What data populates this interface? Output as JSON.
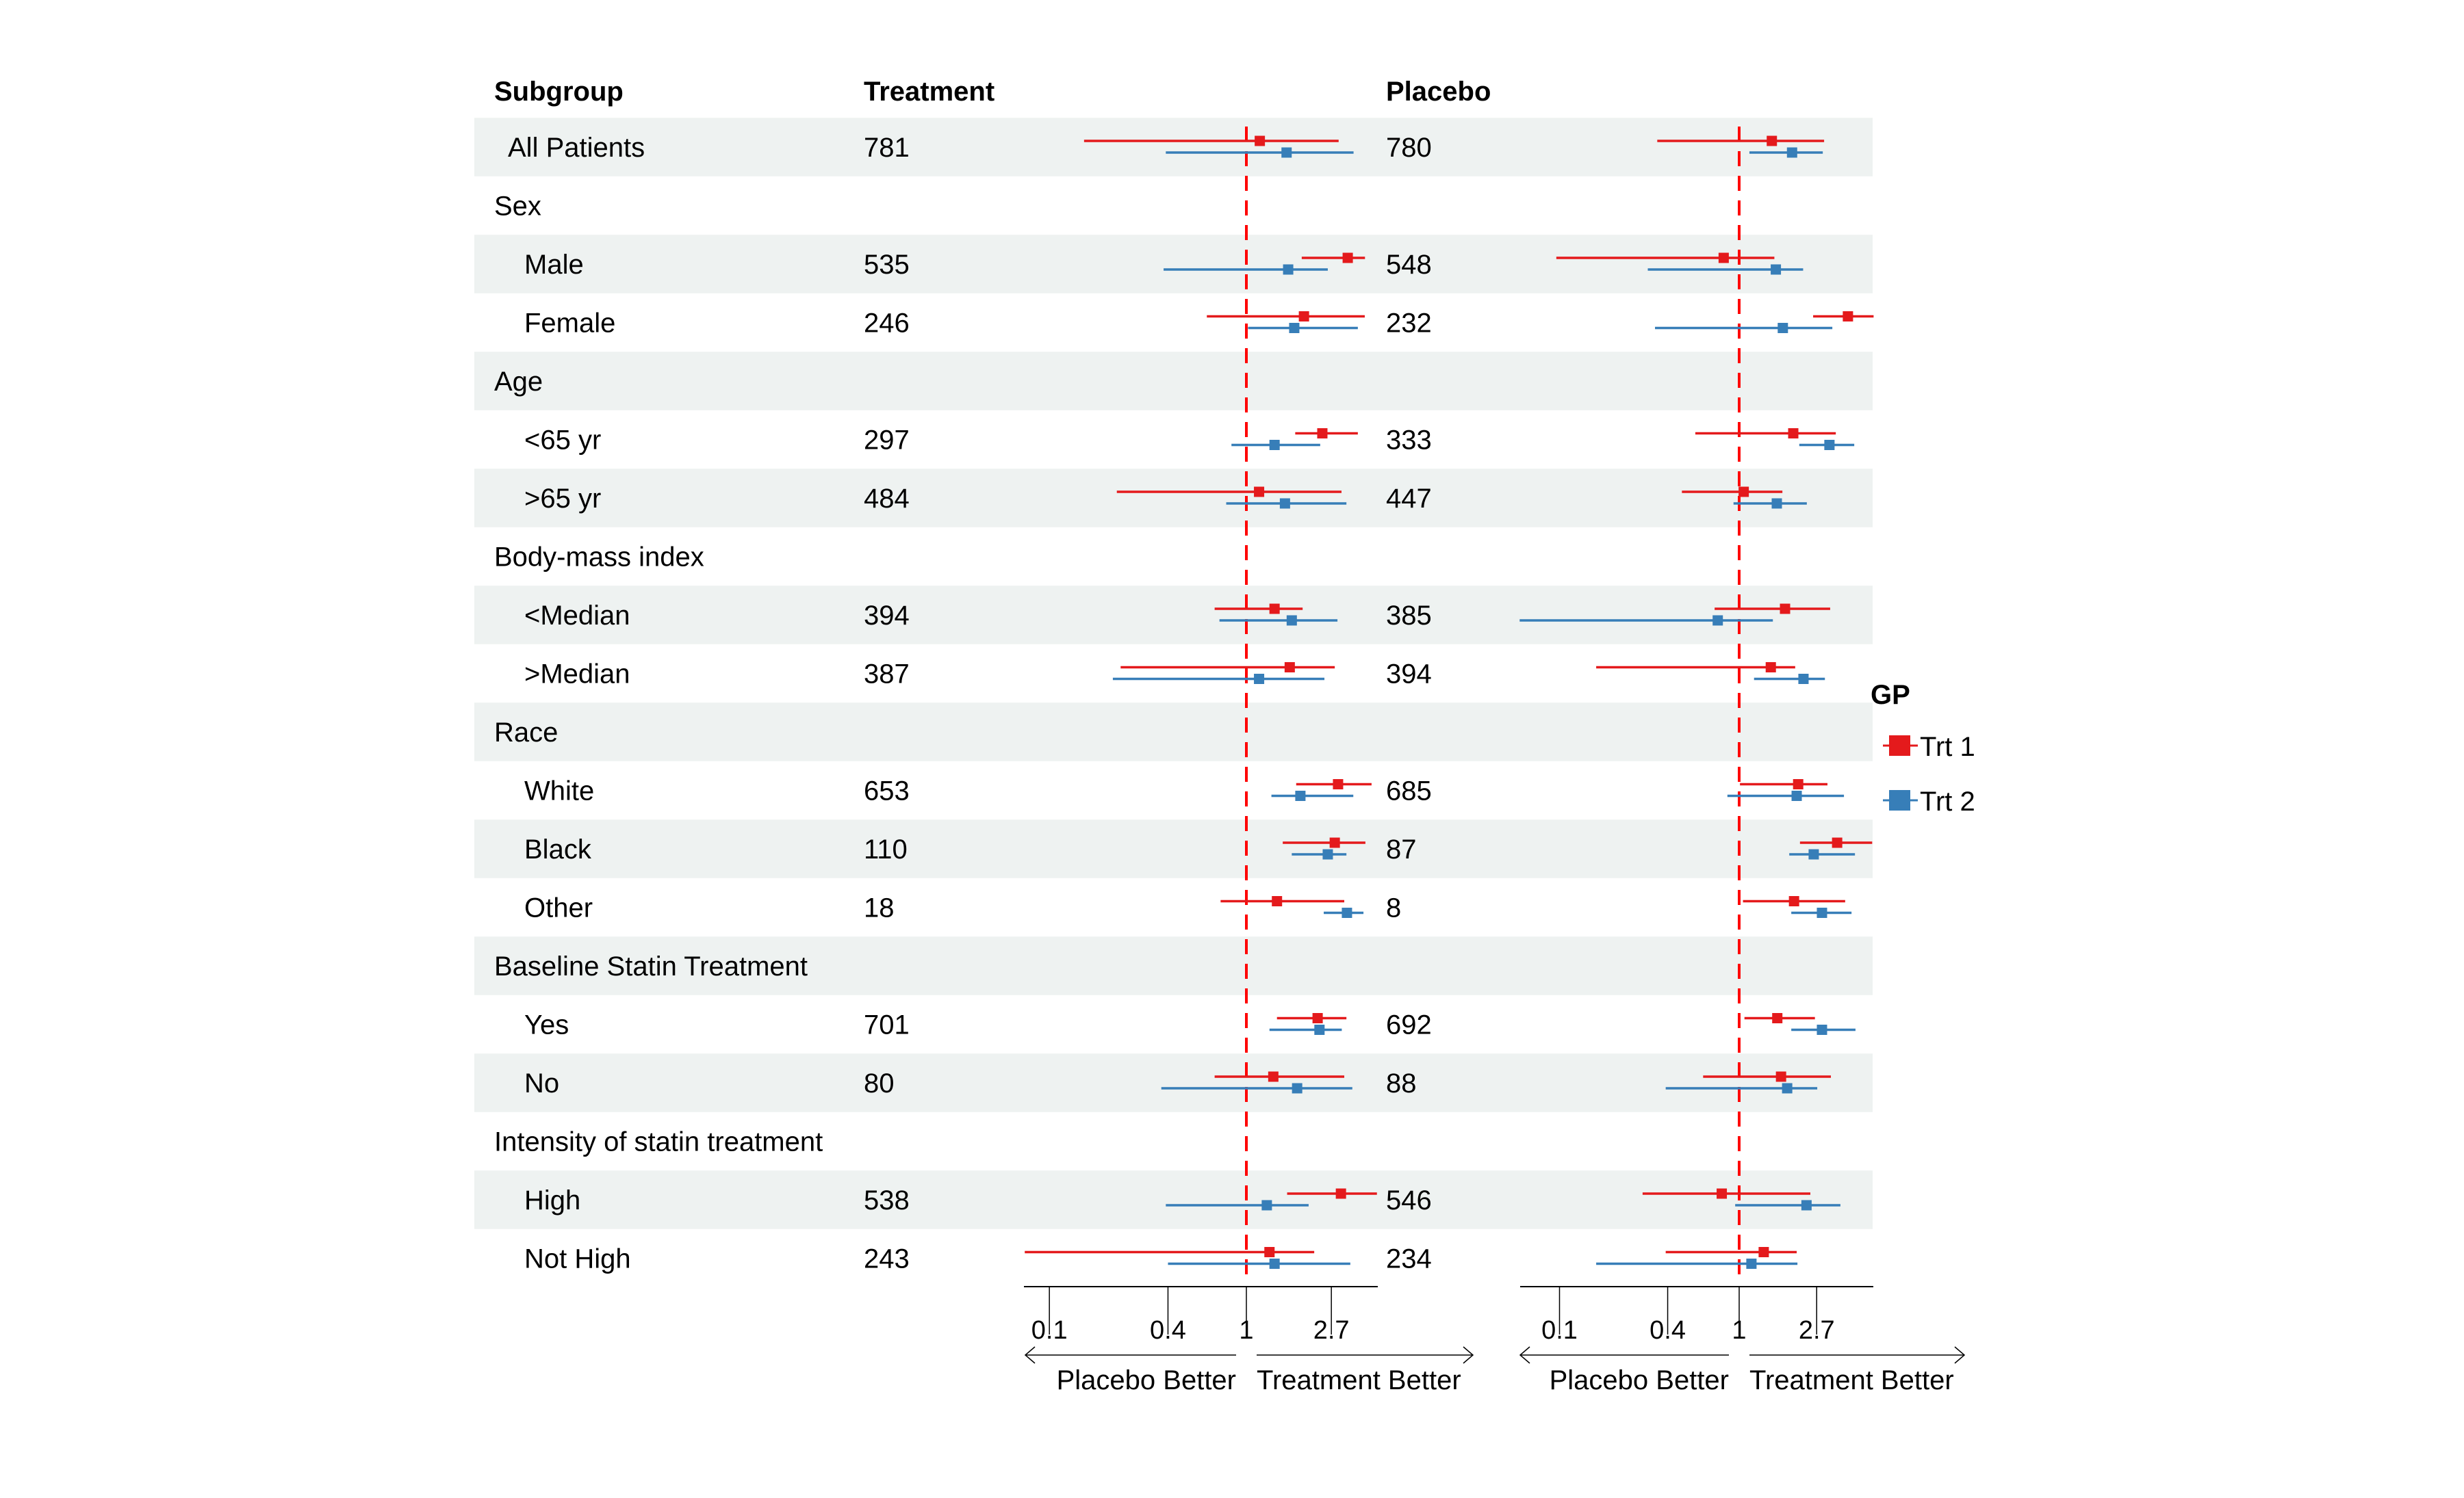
{
  "chart_data": {
    "type": "forest",
    "title": "",
    "columns": {
      "subgroup": "Subgroup",
      "treatment": "Treatment",
      "placebo": "Placebo"
    },
    "scale": "log",
    "reference_value": 1,
    "x_ticks": [
      0.1,
      0.4,
      1,
      2.7
    ],
    "x_tick_labels": [
      "0.1",
      "0.4",
      "1",
      "2.7"
    ],
    "panels": [
      {
        "name": "left",
        "xlim": [
          0.074,
          4.65
        ],
        "direction_labels": {
          "left": "Placebo Better",
          "right": "Treatment Better"
        }
      },
      {
        "name": "right",
        "xlim": [
          0.06,
          5.5
        ],
        "direction_labels": {
          "left": "Placebo Better",
          "right": "Treatment Better"
        }
      }
    ],
    "legend": {
      "title": "GP",
      "placement": "right",
      "entries": [
        {
          "name": "Trt 1",
          "color": "#e41a1c"
        },
        {
          "name": "Trt 2",
          "color": "#377eb8"
        }
      ]
    },
    "rows": [
      {
        "label": "All Patients",
        "indent": 1,
        "shaded": true,
        "treatment_n": "781",
        "placebo_n": "780",
        "left": {
          "Trt 1": [
            0.15,
            1.17,
            2.94
          ],
          "Trt 2": [
            0.39,
            1.6,
            3.5
          ]
        },
        "right": {
          "Trt 1": [
            0.35,
            1.52,
            2.97
          ],
          "Trt 2": [
            1.14,
            1.97,
            2.92
          ]
        }
      },
      {
        "label": "Sex",
        "indent": 0,
        "shaded": false,
        "treatment_n": "",
        "placebo_n": ""
      },
      {
        "label": "Male",
        "indent": 2,
        "shaded": true,
        "treatment_n": "535",
        "placebo_n": "548",
        "left": {
          "Trt 1": [
            1.91,
            3.27,
            4.0
          ],
          "Trt 2": [
            0.38,
            1.63,
            2.59
          ]
        },
        "right": {
          "Trt 1": [
            0.096,
            0.82,
            1.57
          ],
          "Trt 2": [
            0.31,
            1.6,
            2.27
          ]
        }
      },
      {
        "label": "Female",
        "indent": 2,
        "shaded": false,
        "treatment_n": "246",
        "placebo_n": "232",
        "left": {
          "Trt 1": [
            0.63,
            1.96,
            3.99
          ],
          "Trt 2": [
            1.02,
            1.75,
            3.68
          ]
        },
        "right": {
          "Trt 1": [
            2.58,
            4.03,
            5.6
          ],
          "Trt 2": [
            0.34,
            1.75,
            3.3
          ]
        }
      },
      {
        "label": "Age",
        "indent": 0,
        "shaded": true,
        "treatment_n": "",
        "placebo_n": ""
      },
      {
        "label": "<65 yr",
        "indent": 2,
        "shaded": false,
        "treatment_n": "297",
        "placebo_n": "333",
        "left": {
          "Trt 1": [
            1.77,
            2.43,
            3.68
          ],
          "Trt 2": [
            0.84,
            1.39,
            2.37
          ]
        },
        "right": {
          "Trt 1": [
            0.57,
            2.0,
            3.45
          ],
          "Trt 2": [
            2.16,
            3.18,
            4.37
          ]
        }
      },
      {
        "label": ">65 yr",
        "indent": 2,
        "shaded": true,
        "treatment_n": "484",
        "placebo_n": "447",
        "left": {
          "Trt 1": [
            0.22,
            1.16,
            3.04
          ],
          "Trt 2": [
            0.79,
            1.57,
            3.22
          ]
        },
        "right": {
          "Trt 1": [
            0.48,
            1.06,
            1.74
          ],
          "Trt 2": [
            0.93,
            1.62,
            2.38
          ]
        }
      },
      {
        "label": "Body-mass index",
        "indent": 0,
        "shaded": false,
        "treatment_n": "",
        "placebo_n": ""
      },
      {
        "label": "<Median",
        "indent": 2,
        "shaded": true,
        "treatment_n": "394",
        "placebo_n": "385",
        "left": {
          "Trt 1": [
            0.69,
            1.39,
            1.93
          ],
          "Trt 2": [
            0.73,
            1.7,
            2.9
          ]
        },
        "right": {
          "Trt 1": [
            0.73,
            1.8,
            3.21
          ],
          "Trt 2": [
            0.06,
            0.76,
            1.54
          ]
        }
      },
      {
        "label": ">Median",
        "indent": 2,
        "shaded": false,
        "treatment_n": "387",
        "placebo_n": "394",
        "left": {
          "Trt 1": [
            0.23,
            1.66,
            2.81
          ],
          "Trt 2": [
            0.21,
            1.16,
            2.49
          ]
        },
        "right": {
          "Trt 1": [
            0.16,
            1.5,
            2.05
          ],
          "Trt 2": [
            1.21,
            2.28,
            3.0
          ]
        }
      },
      {
        "label": "Race",
        "indent": 0,
        "shaded": true,
        "treatment_n": "",
        "placebo_n": ""
      },
      {
        "label": "White",
        "indent": 2,
        "shaded": false,
        "treatment_n": "653",
        "placebo_n": "685",
        "left": {
          "Trt 1": [
            1.79,
            2.92,
            4.32
          ],
          "Trt 2": [
            1.34,
            1.88,
            3.49
          ]
        },
        "right": {
          "Trt 1": [
            1.01,
            2.13,
            3.1
          ],
          "Trt 2": [
            0.86,
            2.09,
            3.83
          ]
        }
      },
      {
        "label": "Black",
        "indent": 2,
        "shaded": true,
        "treatment_n": "110",
        "placebo_n": "87",
        "left": {
          "Trt 1": [
            1.53,
            2.81,
            4.02
          ],
          "Trt 2": [
            1.7,
            2.59,
            3.22
          ]
        },
        "right": {
          "Trt 1": [
            2.18,
            3.51,
            5.5
          ],
          "Trt 2": [
            1.9,
            2.6,
            4.41
          ]
        }
      },
      {
        "label": "Other",
        "indent": 2,
        "shaded": false,
        "treatment_n": "18",
        "placebo_n": "8",
        "left": {
          "Trt 1": [
            0.74,
            1.43,
            3.14
          ],
          "Trt 2": [
            2.47,
            3.24,
            3.93
          ]
        },
        "right": {
          "Trt 1": [
            1.05,
            2.02,
            3.89
          ],
          "Trt 2": [
            1.95,
            2.89,
            4.22
          ]
        }
      },
      {
        "label": "Baseline Statin Treatment",
        "indent": 0,
        "shaded": true,
        "treatment_n": "",
        "placebo_n": ""
      },
      {
        "label": "Yes",
        "indent": 2,
        "shaded": false,
        "treatment_n": "701",
        "placebo_n": "692",
        "left": {
          "Trt 1": [
            1.43,
            2.3,
            3.22
          ],
          "Trt 2": [
            1.31,
            2.35,
            3.05
          ]
        },
        "right": {
          "Trt 1": [
            1.07,
            1.63,
            2.64
          ],
          "Trt 2": [
            1.95,
            2.89,
            4.44
          ]
        }
      },
      {
        "label": "No",
        "indent": 2,
        "shaded": true,
        "treatment_n": "80",
        "placebo_n": "88",
        "left": {
          "Trt 1": [
            0.69,
            1.37,
            3.14
          ],
          "Trt 2": [
            0.37,
            1.81,
            3.45
          ]
        },
        "right": {
          "Trt 1": [
            0.63,
            1.71,
            3.24
          ],
          "Trt 2": [
            0.39,
            1.85,
            2.72
          ]
        }
      },
      {
        "label": "Intensity of statin treatment",
        "indent": 0,
        "shaded": false,
        "treatment_n": "",
        "placebo_n": ""
      },
      {
        "label": "High",
        "indent": 2,
        "shaded": true,
        "treatment_n": "538",
        "placebo_n": "546",
        "left": {
          "Trt 1": [
            1.61,
            3.02,
            4.6
          ],
          "Trt 2": [
            0.39,
            1.27,
            2.07
          ]
        },
        "right": {
          "Trt 1": [
            0.29,
            0.8,
            2.49
          ],
          "Trt 2": [
            0.95,
            2.37,
            3.66
          ]
        }
      },
      {
        "label": "Not High",
        "indent": 2,
        "shaded": false,
        "treatment_n": "243",
        "placebo_n": "234",
        "left": {
          "Trt 1": [
            0.075,
            1.31,
            2.21
          ],
          "Trt 2": [
            0.4,
            1.39,
            3.37
          ]
        },
        "right": {
          "Trt 1": [
            0.39,
            1.37,
            2.09
          ],
          "Trt 2": [
            0.16,
            1.17,
            2.11
          ]
        }
      }
    ],
    "grid": false
  }
}
